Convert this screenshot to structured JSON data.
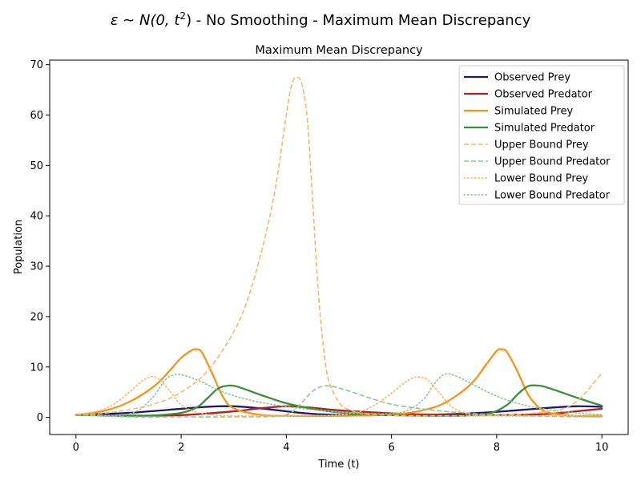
{
  "figure": {
    "suptitle_prefix": "ε ∼ N(0, t",
    "suptitle_sup": "2",
    "suptitle_suffix": ") - No Smoothing - Maximum Mean Discrepancy"
  },
  "chart_data": {
    "type": "line",
    "title": "Maximum Mean Discrepancy",
    "xlabel": "Time (t)",
    "ylabel": "Population",
    "xlim": [
      -0.5,
      10.5
    ],
    "ylim": [
      -3.4,
      70.9
    ],
    "xticks": [
      0,
      2,
      4,
      6,
      8,
      10
    ],
    "yticks": [
      0,
      10,
      20,
      30,
      40,
      50,
      60,
      70
    ],
    "grid": false,
    "legend_position": "top-right",
    "series": [
      {
        "name": "Observed Prey",
        "color": "#191970",
        "dash": "solid",
        "width": 2.3,
        "x": [
          0,
          1,
          2,
          2.5,
          3,
          3.5,
          4,
          4.5,
          5,
          6,
          7,
          7.5,
          8,
          8.5,
          9,
          9.5,
          10
        ],
        "y": [
          0.5,
          0.9,
          1.7,
          2.1,
          2.2,
          1.8,
          1.2,
          0.7,
          0.5,
          0.45,
          0.6,
          0.8,
          1.1,
          1.5,
          1.9,
          2.2,
          2.1
        ]
      },
      {
        "name": "Observed Predator",
        "color": "#b22222",
        "dash": "solid",
        "width": 2.3,
        "x": [
          0,
          1,
          2,
          3,
          3.5,
          4,
          4.5,
          5,
          6,
          7,
          8,
          9,
          9.5,
          10
        ],
        "y": [
          0.5,
          0.35,
          0.45,
          1.2,
          1.8,
          2.2,
          1.9,
          1.4,
          0.8,
          0.5,
          0.45,
          0.7,
          1.2,
          1.7
        ]
      },
      {
        "name": "Simulated Prey",
        "color": "#f7941d",
        "dash": "solid",
        "width": 2.3,
        "x": [
          0,
          0.5,
          1.0,
          1.5,
          1.8,
          2.0,
          2.2,
          2.3,
          2.4,
          2.6,
          2.8,
          3.0,
          3.5,
          4,
          5,
          6,
          6.5,
          7.0,
          7.5,
          7.8,
          8.0,
          8.1,
          8.2,
          8.4,
          8.6,
          8.8,
          9.0,
          9.5,
          10
        ],
        "y": [
          0.5,
          1.2,
          3.0,
          6.3,
          9.5,
          11.8,
          13.3,
          13.5,
          12.8,
          8.5,
          4.0,
          1.8,
          0.5,
          0.3,
          0.3,
          0.6,
          1.2,
          2.8,
          6.5,
          10.5,
          13.2,
          13.5,
          12.9,
          9.0,
          4.5,
          2.0,
          0.9,
          0.3,
          0.2
        ]
      },
      {
        "name": "Simulated Predator",
        "color": "#3a8f3a",
        "dash": "solid",
        "width": 2.3,
        "x": [
          0,
          1,
          1.5,
          2.0,
          2.3,
          2.5,
          2.7,
          2.9,
          3.1,
          3.5,
          4,
          4.5,
          5,
          6,
          7,
          7.5,
          7.9,
          8.2,
          8.4,
          8.6,
          8.8,
          9.0,
          9.5,
          10
        ],
        "y": [
          0.5,
          0.3,
          0.4,
          0.9,
          2.0,
          3.8,
          5.7,
          6.3,
          6.0,
          4.5,
          2.8,
          1.7,
          1.0,
          0.45,
          0.3,
          0.4,
          0.9,
          2.5,
          4.6,
          6.2,
          6.3,
          5.8,
          4.0,
          2.3
        ]
      },
      {
        "name": "Upper Bound Prey",
        "color": "#f7b86b",
        "dash": "dashed",
        "width": 1.6,
        "x": [
          0,
          0.5,
          1.0,
          1.5,
          2.0,
          2.5,
          3.0,
          3.3,
          3.6,
          3.8,
          4.0,
          4.1,
          4.2,
          4.3,
          4.4,
          4.5,
          4.6,
          4.7,
          4.8,
          5.0,
          5.2,
          5.5,
          6,
          7,
          8,
          9,
          9.5,
          10
        ],
        "y": [
          0.5,
          0.8,
          1.5,
          2.7,
          5.0,
          9.2,
          17.0,
          24.5,
          36.0,
          46.0,
          60.0,
          66.0,
          67.5,
          66.0,
          59.0,
          43.0,
          26.0,
          14.5,
          7.5,
          3.0,
          1.5,
          0.7,
          0.4,
          0.3,
          0.4,
          1.2,
          3.0,
          8.8
        ]
      },
      {
        "name": "Upper Bound Predator",
        "color": "#8ec78e",
        "dash": "dashed",
        "width": 1.6,
        "x": [
          0,
          1,
          2,
          3,
          3.8,
          4.1,
          4.3,
          4.5,
          4.7,
          4.9,
          5.2,
          5.6,
          6,
          6.5,
          7,
          8,
          9,
          10
        ],
        "y": [
          0.5,
          0.1,
          0.1,
          0.1,
          0.2,
          1.0,
          3.0,
          5.2,
          6.2,
          6.1,
          5.2,
          3.8,
          2.6,
          1.8,
          1.2,
          0.5,
          0.2,
          0.1
        ]
      },
      {
        "name": "Lower Bound Prey",
        "color": "#f7b86b",
        "dash": "dotted",
        "width": 1.6,
        "x": [
          0,
          0.5,
          0.8,
          1.1,
          1.3,
          1.45,
          1.6,
          1.8,
          2.0,
          2.3,
          2.6,
          3,
          4,
          5,
          5.5,
          5.9,
          6.2,
          6.4,
          6.55,
          6.7,
          6.9,
          7.1,
          7.3,
          7.5,
          8,
          9,
          10
        ],
        "y": [
          0.5,
          1.5,
          3.2,
          5.8,
          7.5,
          8.1,
          7.4,
          5.0,
          2.5,
          1.0,
          0.5,
          0.3,
          0.3,
          0.5,
          1.5,
          4.0,
          6.5,
          7.8,
          8.0,
          7.3,
          5.0,
          2.5,
          1.2,
          0.6,
          0.3,
          0.3,
          0.5
        ]
      },
      {
        "name": "Lower Bound Predator",
        "color": "#8ec78e",
        "dash": "dotted",
        "width": 1.6,
        "x": [
          0,
          0.8,
          1.2,
          1.5,
          1.7,
          1.9,
          2.1,
          2.4,
          2.8,
          3.5,
          4.5,
          5.5,
          6.2,
          6.6,
          6.8,
          7.0,
          7.2,
          7.5,
          8,
          8.5,
          9,
          9.5,
          10
        ],
        "y": [
          0.5,
          0.4,
          1.5,
          4.5,
          7.5,
          8.5,
          8.2,
          7.0,
          5.0,
          3.0,
          1.5,
          0.8,
          1.0,
          3.5,
          6.5,
          8.5,
          8.3,
          6.8,
          4.2,
          2.5,
          1.5,
          0.9,
          0.5
        ]
      }
    ]
  }
}
